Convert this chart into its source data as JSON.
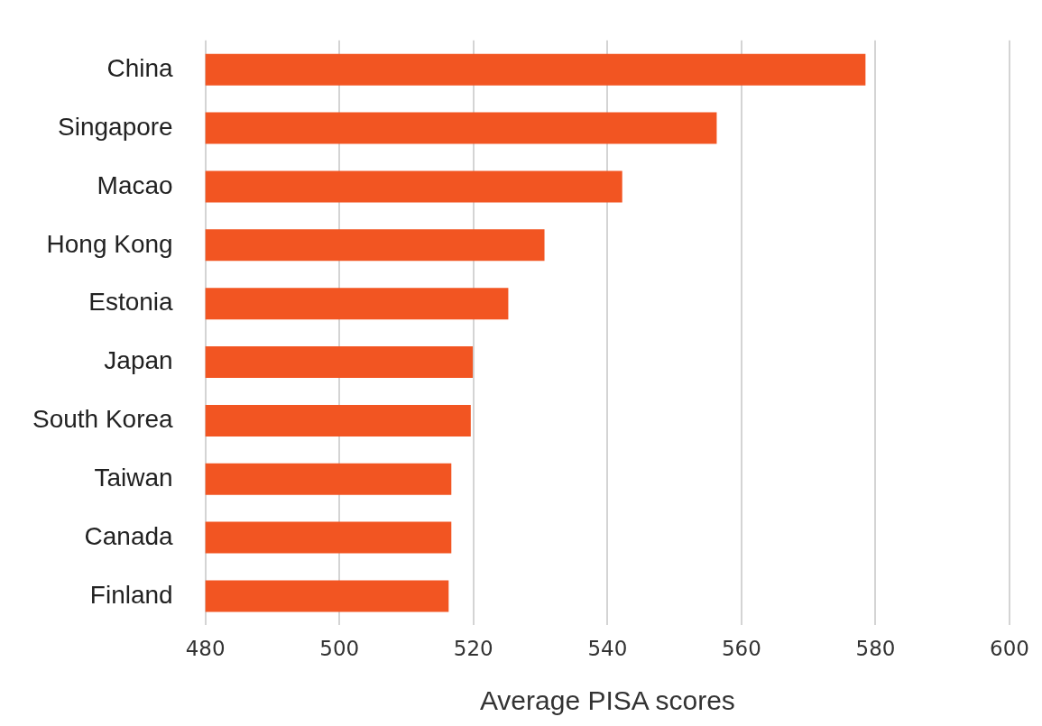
{
  "chart_data": {
    "type": "bar",
    "orientation": "horizontal",
    "xlabel": "Average PISA scores",
    "categories": [
      "China",
      "Singapore",
      "Macao",
      "Hong Kong",
      "Estonia",
      "Japan",
      "South Korea",
      "Taiwan",
      "Canada",
      "Finland"
    ],
    "values": [
      578.5,
      556.3,
      542.2,
      530.6,
      525.2,
      519.9,
      519.6,
      516.7,
      516.7,
      516.3
    ],
    "color": "#f25522",
    "xlim": [
      480,
      600
    ],
    "xticks": [
      480,
      500,
      520,
      540,
      560,
      580,
      600
    ],
    "grid": "x",
    "legend": false
  }
}
